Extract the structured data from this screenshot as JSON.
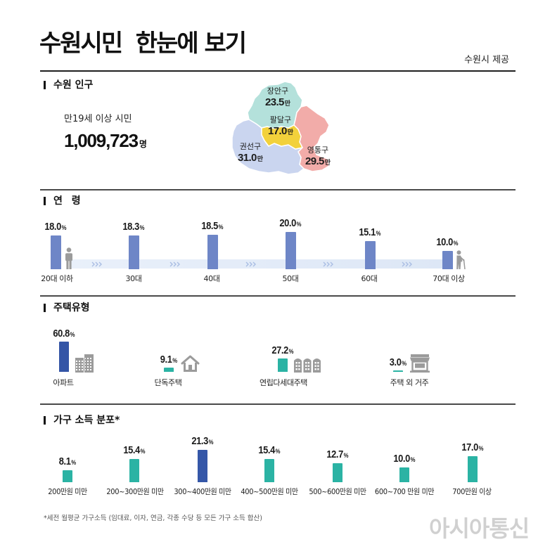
{
  "header": {
    "title": "수원시민  한눈에 보기",
    "source": "수원시 제공"
  },
  "population": {
    "section_title": "수원 인구",
    "label": "만19세 이상 시민",
    "value": "1,009,723",
    "unit": "명",
    "districts": [
      {
        "name": "장안구",
        "value": "23.5",
        "unit": "만",
        "color": "#b4e1db"
      },
      {
        "name": "팔달구",
        "value": "17.0",
        "unit": "만",
        "color": "#f2d13b"
      },
      {
        "name": "권선구",
        "value": "31.0",
        "unit": "만",
        "color": "#cad5ef"
      },
      {
        "name": "영통구",
        "value": "29.5",
        "unit": "만",
        "color": "#f2aca9"
      }
    ]
  },
  "chart_data": [
    {
      "type": "bar",
      "title": "연 령",
      "categories": [
        "20대 이하",
        "30대",
        "40대",
        "50대",
        "60대",
        "70대 이상"
      ],
      "values": [
        18.0,
        18.3,
        18.5,
        20.0,
        15.1,
        10.0
      ],
      "unit": "%",
      "color": "#6e86c7",
      "icons": [
        "person-icon",
        "elderly-person-icon"
      ]
    },
    {
      "type": "bar",
      "title": "주택유형",
      "categories": [
        "아파트",
        "단독주택",
        "연립다세대주택",
        "주택 외 거주"
      ],
      "values": [
        60.8,
        9.1,
        27.2,
        3.0
      ],
      "unit": "%",
      "colors": [
        "#3455a6",
        "#2bb3a4",
        "#2bb3a4",
        "#2bb3a4"
      ],
      "icons": [
        "apartment-icon",
        "house-icon",
        "row-house-icon",
        "shop-icon"
      ]
    },
    {
      "type": "bar",
      "title": "가구 소득 분포*",
      "categories": [
        "200만원 미만",
        "200~300만원 미만",
        "300~400만원 미만",
        "400~500만원 미만",
        "500~600만원 미만",
        "600~700 만원 미만",
        "700만원 이상"
      ],
      "values": [
        8.1,
        15.4,
        21.3,
        15.4,
        12.7,
        10.0,
        17.0
      ],
      "unit": "%",
      "colors": [
        "#2bb3a4",
        "#2bb3a4",
        "#3557a8",
        "#2bb3a4",
        "#2bb3a4",
        "#2bb3a4",
        "#2bb3a4"
      ]
    }
  ],
  "footnote": "*세전 월평균 가구소득 (임대료, 이자, 연금, 각종 수당 등 모든 가구 소득 합산)",
  "watermark": "아시아통신"
}
